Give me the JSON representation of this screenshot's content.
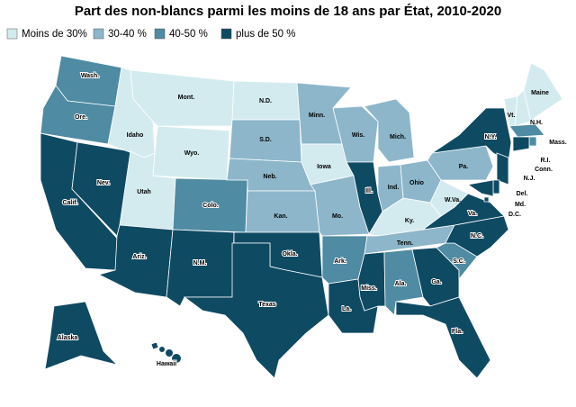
{
  "title": "Part des non-blancs parmi les moins de 18 ans par État, 2010-2020",
  "legend": [
    {
      "label": "Moins de 30%",
      "color": "#d3ebef"
    },
    {
      "label": "30-40 %",
      "color": "#8db6ca"
    },
    {
      "label": "40-50 %",
      "color": "#4f8ba2"
    },
    {
      "label": "plus de 50 %",
      "color": "#0f4a63"
    }
  ],
  "states": [
    {
      "label": "Wash.",
      "class": 2
    },
    {
      "label": "Ore.",
      "class": 2
    },
    {
      "label": "Calif.",
      "class": 3
    },
    {
      "label": "Nev.",
      "class": 3
    },
    {
      "label": "Idaho",
      "class": 0
    },
    {
      "label": "Mont.",
      "class": 0
    },
    {
      "label": "Wyo.",
      "class": 0
    },
    {
      "label": "Utah",
      "class": 0
    },
    {
      "label": "Colo.",
      "class": 2
    },
    {
      "label": "Ariz.",
      "class": 3
    },
    {
      "label": "N.M.",
      "class": 3
    },
    {
      "label": "N.D.",
      "class": 0
    },
    {
      "label": "S.D.",
      "class": 1
    },
    {
      "label": "Neb.",
      "class": 1
    },
    {
      "label": "Kan.",
      "class": 1
    },
    {
      "label": "Okla.",
      "class": 3
    },
    {
      "label": "Texas",
      "class": 3
    },
    {
      "label": "Minn.",
      "class": 1
    },
    {
      "label": "Iowa",
      "class": 0
    },
    {
      "label": "Mo.",
      "class": 1
    },
    {
      "label": "Ark.",
      "class": 2
    },
    {
      "label": "La.",
      "class": 3
    },
    {
      "label": "Wis.",
      "class": 1
    },
    {
      "label": "Ill.",
      "class": 3
    },
    {
      "label": "Mich.",
      "class": 1
    },
    {
      "label": "Ind.",
      "class": 1
    },
    {
      "label": "Ohio",
      "class": 1
    },
    {
      "label": "Ky.",
      "class": 0
    },
    {
      "label": "Tenn.",
      "class": 1
    },
    {
      "label": "Miss.",
      "class": 3
    },
    {
      "label": "Ala.",
      "class": 2
    },
    {
      "label": "Ga.",
      "class": 3
    },
    {
      "label": "Fla.",
      "class": 3
    },
    {
      "label": "S.C.",
      "class": 2
    },
    {
      "label": "N.C.",
      "class": 3
    },
    {
      "label": "Va.",
      "class": 3
    },
    {
      "label": "W.Va.",
      "class": 0
    },
    {
      "label": "Pa.",
      "class": 1
    },
    {
      "label": "N.Y.",
      "class": 3
    },
    {
      "label": "Vt.",
      "class": 0
    },
    {
      "label": "N.H.",
      "class": 0
    },
    {
      "label": "Maine",
      "class": 0
    },
    {
      "label": "Mass.",
      "class": 2
    },
    {
      "label": "R.I.",
      "class": 2
    },
    {
      "label": "Conn.",
      "class": 3
    },
    {
      "label": "N.J.",
      "class": 3
    },
    {
      "label": "Del.",
      "class": 3
    },
    {
      "label": "Md.",
      "class": 3
    },
    {
      "label": "D.C.",
      "class": 3
    },
    {
      "label": "Alaska",
      "class": 3
    },
    {
      "label": "Hawaii",
      "class": 3
    }
  ]
}
